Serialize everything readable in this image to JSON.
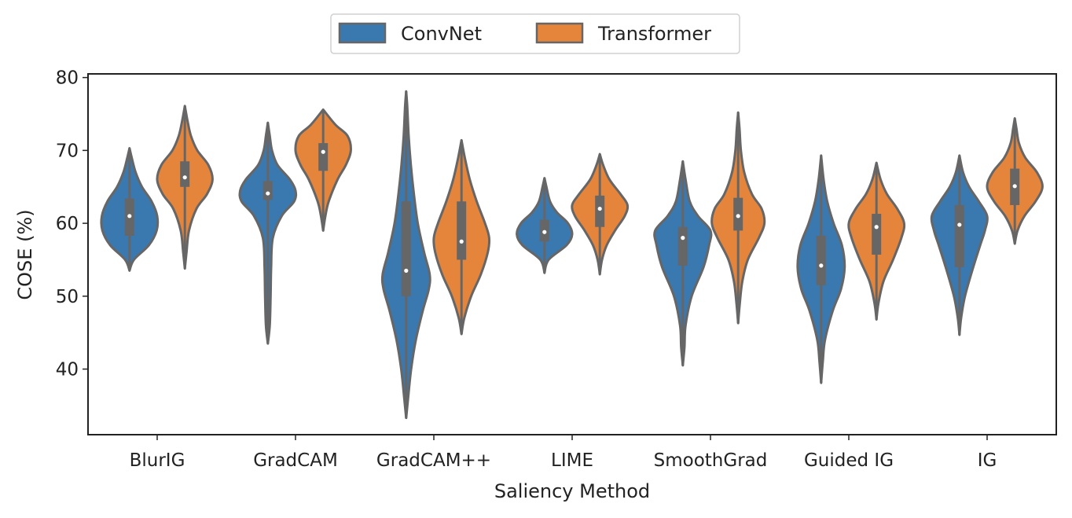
{
  "chart_data": {
    "type": "violin",
    "title": "",
    "xlabel": "Saliency Method",
    "ylabel": "COSE (%)",
    "ylim": [
      31,
      80.5
    ],
    "yticks": [
      40,
      50,
      60,
      70,
      80
    ],
    "categories": [
      "BlurIG",
      "GradCAM",
      "GradCAM++",
      "LIME",
      "SmoothGrad",
      "Guided IG",
      "IG"
    ],
    "legend_position": "top-center",
    "grid": false,
    "series": [
      {
        "name": "ConvNet",
        "color": "#3a78b0",
        "violins": [
          {
            "min": 53.5,
            "max": 70.3,
            "q1": 58.3,
            "median": 61.0,
            "q3": 63.4,
            "profile": [
              [
                53.5,
                0.0
              ],
              [
                55,
                0.16
              ],
              [
                57,
                0.7
              ],
              [
                59,
                0.98
              ],
              [
                61,
                1.0
              ],
              [
                63,
                0.8
              ],
              [
                65,
                0.45
              ],
              [
                67,
                0.22
              ],
              [
                69,
                0.08
              ],
              [
                70.3,
                0.0
              ]
            ]
          },
          {
            "min": 43.5,
            "max": 73.8,
            "q1": 63.2,
            "median": 64.1,
            "q3": 65.8,
            "profile": [
              [
                43.5,
                0.0
              ],
              [
                46,
                0.07
              ],
              [
                50,
                0.1
              ],
              [
                54,
                0.12
              ],
              [
                58,
                0.18
              ],
              [
                61,
                0.5
              ],
              [
                63,
                0.95
              ],
              [
                64.5,
                1.0
              ],
              [
                66,
                0.8
              ],
              [
                68,
                0.35
              ],
              [
                70,
                0.15
              ],
              [
                72,
                0.07
              ],
              [
                73.8,
                0.0
              ]
            ]
          },
          {
            "min": 33.3,
            "max": 78.1,
            "q1": 50.0,
            "median": 53.5,
            "q3": 63.0,
            "profile": [
              [
                33.3,
                0.0
              ],
              [
                36,
                0.07
              ],
              [
                40,
                0.18
              ],
              [
                44,
                0.35
              ],
              [
                48,
                0.6
              ],
              [
                51,
                0.82
              ],
              [
                53,
                0.85
              ],
              [
                56,
                0.65
              ],
              [
                60,
                0.42
              ],
              [
                64,
                0.28
              ],
              [
                68,
                0.17
              ],
              [
                72,
                0.09
              ],
              [
                76,
                0.04
              ],
              [
                78.1,
                0.0
              ]
            ]
          },
          {
            "min": 53.2,
            "max": 66.2,
            "q1": 57.5,
            "median": 58.8,
            "q3": 60.5,
            "profile": [
              [
                53.2,
                0.0
              ],
              [
                55,
                0.15
              ],
              [
                57,
                0.8
              ],
              [
                58.5,
                1.0
              ],
              [
                60,
                0.85
              ],
              [
                61.5,
                0.45
              ],
              [
                63,
                0.2
              ],
              [
                65,
                0.07
              ],
              [
                66.2,
                0.0
              ]
            ]
          },
          {
            "min": 40.5,
            "max": 68.5,
            "q1": 54.2,
            "median": 58.0,
            "q3": 59.5,
            "profile": [
              [
                40.5,
                0.0
              ],
              [
                43,
                0.06
              ],
              [
                46,
                0.1
              ],
              [
                50,
                0.32
              ],
              [
                54,
                0.75
              ],
              [
                57,
                0.95
              ],
              [
                59,
                1.0
              ],
              [
                61,
                0.55
              ],
              [
                63,
                0.25
              ],
              [
                66,
                0.1
              ],
              [
                68.5,
                0.0
              ]
            ]
          },
          {
            "min": 38.1,
            "max": 69.3,
            "q1": 51.5,
            "median": 54.2,
            "q3": 58.3,
            "profile": [
              [
                38.1,
                0.0
              ],
              [
                41,
                0.06
              ],
              [
                44,
                0.14
              ],
              [
                48,
                0.42
              ],
              [
                51,
                0.72
              ],
              [
                54,
                0.85
              ],
              [
                57,
                0.75
              ],
              [
                60,
                0.45
              ],
              [
                63,
                0.22
              ],
              [
                66,
                0.09
              ],
              [
                69.3,
                0.0
              ]
            ]
          },
          {
            "min": 44.7,
            "max": 69.3,
            "q1": 54.0,
            "median": 59.8,
            "q3": 62.5,
            "profile": [
              [
                44.7,
                0.0
              ],
              [
                47,
                0.06
              ],
              [
                50,
                0.2
              ],
              [
                54,
                0.5
              ],
              [
                57,
                0.75
              ],
              [
                59,
                0.92
              ],
              [
                61,
                1.0
              ],
              [
                63,
                0.7
              ],
              [
                65,
                0.35
              ],
              [
                67,
                0.13
              ],
              [
                69.3,
                0.0
              ]
            ]
          }
        ]
      },
      {
        "name": "Transformer",
        "color": "#e5853c",
        "violins": [
          {
            "min": 53.8,
            "max": 76.1,
            "q1": 65.0,
            "median": 66.3,
            "q3": 68.5,
            "profile": [
              [
                53.8,
                0.0
              ],
              [
                56,
                0.06
              ],
              [
                59,
                0.15
              ],
              [
                62,
                0.42
              ],
              [
                64,
                0.8
              ],
              [
                66,
                1.0
              ],
              [
                68,
                0.85
              ],
              [
                70,
                0.45
              ],
              [
                72,
                0.22
              ],
              [
                74,
                0.1
              ],
              [
                76.1,
                0.0
              ]
            ]
          },
          {
            "min": 59.0,
            "max": 75.6,
            "q1": 67.2,
            "median": 69.8,
            "q3": 71.0,
            "profile": [
              [
                59.0,
                0.0
              ],
              [
                61,
                0.08
              ],
              [
                63,
                0.2
              ],
              [
                66,
                0.52
              ],
              [
                68,
                0.82
              ],
              [
                70,
                1.0
              ],
              [
                72,
                0.88
              ],
              [
                73.5,
                0.45
              ],
              [
                75.6,
                0.0
              ]
            ]
          },
          {
            "min": 44.8,
            "max": 71.4,
            "q1": 55.0,
            "median": 57.5,
            "q3": 63.0,
            "profile": [
              [
                44.8,
                0.0
              ],
              [
                47,
                0.1
              ],
              [
                50,
                0.35
              ],
              [
                53,
                0.7
              ],
              [
                56,
                0.95
              ],
              [
                58,
                1.0
              ],
              [
                60,
                0.85
              ],
              [
                63,
                0.55
              ],
              [
                66,
                0.3
              ],
              [
                69,
                0.12
              ],
              [
                71.4,
                0.0
              ]
            ]
          },
          {
            "min": 53.0,
            "max": 69.5,
            "q1": 59.5,
            "median": 62.0,
            "q3": 63.8,
            "profile": [
              [
                53.0,
                0.0
              ],
              [
                55,
                0.08
              ],
              [
                57,
                0.25
              ],
              [
                59,
                0.55
              ],
              [
                61,
                0.9
              ],
              [
                62.5,
                1.0
              ],
              [
                64,
                0.75
              ],
              [
                66,
                0.35
              ],
              [
                68,
                0.12
              ],
              [
                69.5,
                0.0
              ]
            ]
          },
          {
            "min": 46.3,
            "max": 75.2,
            "q1": 59.0,
            "median": 61.0,
            "q3": 63.5,
            "profile": [
              [
                46.3,
                0.0
              ],
              [
                49,
                0.06
              ],
              [
                52,
                0.15
              ],
              [
                55,
                0.35
              ],
              [
                58,
                0.75
              ],
              [
                60,
                0.95
              ],
              [
                62,
                0.85
              ],
              [
                64,
                0.5
              ],
              [
                67,
                0.22
              ],
              [
                70,
                0.1
              ],
              [
                73,
                0.05
              ],
              [
                75.2,
                0.0
              ]
            ]
          },
          {
            "min": 46.8,
            "max": 68.3,
            "q1": 55.7,
            "median": 59.5,
            "q3": 61.3,
            "profile": [
              [
                46.8,
                0.0
              ],
              [
                49,
                0.07
              ],
              [
                52,
                0.25
              ],
              [
                55,
                0.6
              ],
              [
                58,
                0.9
              ],
              [
                60,
                1.0
              ],
              [
                62,
                0.75
              ],
              [
                64,
                0.38
              ],
              [
                66,
                0.15
              ],
              [
                68.3,
                0.0
              ]
            ]
          },
          {
            "min": 57.2,
            "max": 74.4,
            "q1": 62.5,
            "median": 65.1,
            "q3": 67.5,
            "profile": [
              [
                57.2,
                0.0
              ],
              [
                59,
                0.1
              ],
              [
                61,
                0.35
              ],
              [
                63,
                0.75
              ],
              [
                65,
                1.0
              ],
              [
                67,
                0.8
              ],
              [
                69,
                0.38
              ],
              [
                71,
                0.15
              ],
              [
                73,
                0.06
              ],
              [
                74.4,
                0.0
              ]
            ]
          }
        ]
      }
    ]
  }
}
